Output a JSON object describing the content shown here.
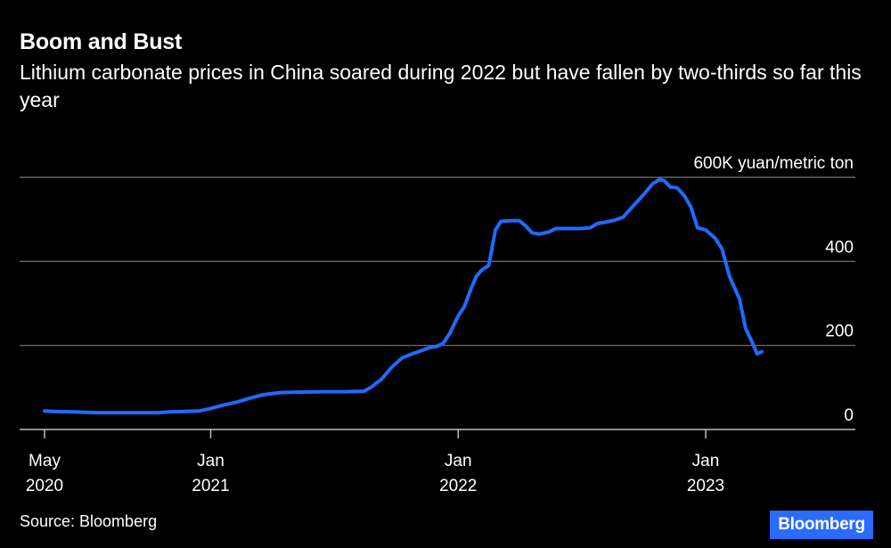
{
  "header": {
    "title": "Boom and Bust",
    "subtitle": "Lithium carbonate prices in China soared during 2022 but have fallen by two-thirds so far this year"
  },
  "footer": {
    "source": "Source: Bloomberg",
    "logo": "Bloomberg"
  },
  "colors": {
    "line": "#1f6bff",
    "grid": "#7a7a7a",
    "background": "#000000",
    "logo_bg": "#2b6bff"
  },
  "chart_data": {
    "type": "line",
    "title": "Boom and Bust",
    "subtitle": "Lithium carbonate prices in China soared during 2022 but have fallen by two-thirds so far this year",
    "ylabel": "600K yuan/metric ton",
    "unit": "K yuan/metric ton",
    "ylim": [
      0,
      600
    ],
    "y_ticks": [
      {
        "value": 0,
        "label": "0"
      },
      {
        "value": 200,
        "label": "200"
      },
      {
        "value": 400,
        "label": "400"
      },
      {
        "value": 600,
        "label": "600K yuan/metric ton"
      }
    ],
    "xlim": [
      "2020-05-01",
      "2023-04-15"
    ],
    "x_ticks": [
      {
        "date": "2020-05-01",
        "line1": "May",
        "line2": "2020"
      },
      {
        "date": "2021-01-01",
        "line1": "Jan",
        "line2": "2021"
      },
      {
        "date": "2022-01-01",
        "line1": "Jan",
        "line2": "2022"
      },
      {
        "date": "2023-01-01",
        "line1": "Jan",
        "line2": "2023"
      }
    ],
    "grid": true,
    "series": [
      {
        "points": [
          [
            "2020-05-01",
            44
          ],
          [
            "2020-05-15",
            43
          ],
          [
            "2020-06-15",
            42
          ],
          [
            "2020-07-15",
            40
          ],
          [
            "2020-08-15",
            40
          ],
          [
            "2020-09-15",
            40
          ],
          [
            "2020-10-15",
            40
          ],
          [
            "2020-11-01",
            42
          ],
          [
            "2020-11-20",
            43
          ],
          [
            "2020-12-15",
            44
          ],
          [
            "2021-01-01",
            50
          ],
          [
            "2021-01-20",
            58
          ],
          [
            "2021-02-10",
            66
          ],
          [
            "2021-03-01",
            75
          ],
          [
            "2021-03-20",
            83
          ],
          [
            "2021-04-15",
            88
          ],
          [
            "2021-05-15",
            89
          ],
          [
            "2021-06-15",
            90
          ],
          [
            "2021-07-15",
            90
          ],
          [
            "2021-08-15",
            91
          ],
          [
            "2021-08-25",
            100
          ],
          [
            "2021-09-10",
            120
          ],
          [
            "2021-09-25",
            148
          ],
          [
            "2021-10-10",
            170
          ],
          [
            "2021-10-25",
            180
          ],
          [
            "2021-11-05",
            186
          ],
          [
            "2021-11-20",
            195
          ],
          [
            "2021-12-01",
            198
          ],
          [
            "2021-12-10",
            205
          ],
          [
            "2021-12-20",
            230
          ],
          [
            "2022-01-01",
            270
          ],
          [
            "2022-01-10",
            292
          ],
          [
            "2022-01-20",
            335
          ],
          [
            "2022-01-28",
            365
          ],
          [
            "2022-02-05",
            380
          ],
          [
            "2022-02-15",
            390
          ],
          [
            "2022-02-25",
            475
          ],
          [
            "2022-03-05",
            495
          ],
          [
            "2022-03-20",
            497
          ],
          [
            "2022-04-01",
            497
          ],
          [
            "2022-04-10",
            485
          ],
          [
            "2022-04-20",
            468
          ],
          [
            "2022-05-01",
            465
          ],
          [
            "2022-05-15",
            470
          ],
          [
            "2022-05-25",
            478
          ],
          [
            "2022-06-15",
            478
          ],
          [
            "2022-07-01",
            478
          ],
          [
            "2022-07-15",
            480
          ],
          [
            "2022-07-25",
            490
          ],
          [
            "2022-08-05",
            493
          ],
          [
            "2022-08-20",
            498
          ],
          [
            "2022-09-01",
            505
          ],
          [
            "2022-09-15",
            530
          ],
          [
            "2022-10-01",
            558
          ],
          [
            "2022-10-15",
            585
          ],
          [
            "2022-10-25",
            595
          ],
          [
            "2022-11-01",
            592
          ],
          [
            "2022-11-10",
            577
          ],
          [
            "2022-11-20",
            575
          ],
          [
            "2022-12-01",
            555
          ],
          [
            "2022-12-10",
            530
          ],
          [
            "2022-12-20",
            480
          ],
          [
            "2023-01-01",
            475
          ],
          [
            "2023-01-15",
            455
          ],
          [
            "2023-01-25",
            430
          ],
          [
            "2023-02-05",
            365
          ],
          [
            "2023-02-20",
            310
          ],
          [
            "2023-03-01",
            240
          ],
          [
            "2023-03-10",
            210
          ],
          [
            "2023-03-18",
            180
          ],
          [
            "2023-03-25",
            185
          ]
        ]
      }
    ]
  }
}
